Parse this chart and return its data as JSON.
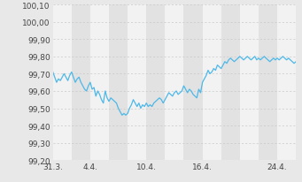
{
  "background_color": "#e8e8e8",
  "plot_bg_light": "#f2f2f2",
  "plot_bg_dark": "#e2e2e2",
  "line_color": "#4db8e8",
  "line_width": 0.9,
  "ylim": [
    99.2,
    100.1
  ],
  "ytick_labels": [
    "99,20",
    "99,30",
    "99,40",
    "99,50",
    "99,60",
    "99,70",
    "99,80",
    "99,90",
    "100,00",
    "100,10"
  ],
  "ytick_values": [
    99.2,
    99.3,
    99.4,
    99.5,
    99.6,
    99.7,
    99.8,
    99.9,
    100.0,
    100.1
  ],
  "xtick_labels": [
    "31.3.",
    "4.4.",
    "10.4.",
    "16.4.",
    "24.4."
  ],
  "xtick_positions": [
    0,
    4,
    10,
    16,
    24
  ],
  "grid_color": "#c8c8c8",
  "n_stripes": 14,
  "xlim": [
    0,
    26
  ],
  "x_values": [
    0,
    0.2,
    0.4,
    0.6,
    0.8,
    1.0,
    1.2,
    1.4,
    1.6,
    1.8,
    2.0,
    2.2,
    2.4,
    2.6,
    2.8,
    3.0,
    3.2,
    3.4,
    3.6,
    3.8,
    4.0,
    4.2,
    4.4,
    4.6,
    4.8,
    5.0,
    5.2,
    5.4,
    5.6,
    5.8,
    6.0,
    6.2,
    6.4,
    6.6,
    6.8,
    7.0,
    7.2,
    7.4,
    7.6,
    7.8,
    8.0,
    8.2,
    8.4,
    8.6,
    8.8,
    9.0,
    9.2,
    9.4,
    9.6,
    9.8,
    10.0,
    10.2,
    10.4,
    10.6,
    10.8,
    11.0,
    11.2,
    11.4,
    11.6,
    11.8,
    12.0,
    12.2,
    12.4,
    12.6,
    12.8,
    13.0,
    13.2,
    13.4,
    13.6,
    13.8,
    14.0,
    14.2,
    14.4,
    14.6,
    14.8,
    15.0,
    15.2,
    15.4,
    15.6,
    15.8,
    16.0,
    16.2,
    16.4,
    16.6,
    16.8,
    17.0,
    17.2,
    17.4,
    17.6,
    17.8,
    18.0,
    18.2,
    18.4,
    18.6,
    18.8,
    19.0,
    19.2,
    19.4,
    19.6,
    19.8,
    20.0,
    20.2,
    20.4,
    20.6,
    20.8,
    21.0,
    21.2,
    21.4,
    21.6,
    21.8,
    22.0,
    22.2,
    22.4,
    22.6,
    22.8,
    23.0,
    23.2,
    23.4,
    23.6,
    23.8,
    24.0,
    24.2,
    24.4,
    24.6,
    24.8,
    25.0,
    25.2,
    25.4,
    25.6,
    25.8,
    26.0
  ],
  "y_values": [
    99.71,
    99.68,
    99.65,
    99.67,
    99.66,
    99.68,
    99.7,
    99.68,
    99.66,
    99.69,
    99.71,
    99.68,
    99.65,
    99.67,
    99.68,
    99.65,
    99.63,
    99.61,
    99.6,
    99.63,
    99.65,
    99.61,
    99.62,
    99.57,
    99.6,
    99.58,
    99.55,
    99.53,
    99.6,
    99.56,
    99.54,
    99.56,
    99.55,
    99.54,
    99.53,
    99.5,
    99.48,
    99.46,
    99.47,
    99.46,
    99.47,
    99.5,
    99.52,
    99.55,
    99.53,
    99.51,
    99.53,
    99.5,
    99.52,
    99.51,
    99.53,
    99.51,
    99.52,
    99.51,
    99.53,
    99.54,
    99.55,
    99.56,
    99.55,
    99.53,
    99.55,
    99.57,
    99.59,
    99.58,
    99.57,
    99.59,
    99.6,
    99.58,
    99.59,
    99.6,
    99.63,
    99.61,
    99.59,
    99.61,
    99.6,
    99.58,
    99.57,
    99.56,
    99.61,
    99.59,
    99.65,
    99.67,
    99.69,
    99.72,
    99.7,
    99.71,
    99.73,
    99.72,
    99.75,
    99.74,
    99.73,
    99.75,
    99.77,
    99.76,
    99.78,
    99.79,
    99.78,
    99.77,
    99.78,
    99.79,
    99.8,
    99.79,
    99.78,
    99.79,
    99.8,
    99.79,
    99.78,
    99.79,
    99.8,
    99.78,
    99.79,
    99.78,
    99.79,
    99.8,
    99.79,
    99.78,
    99.77,
    99.78,
    99.79,
    99.78,
    99.79,
    99.78,
    99.79,
    99.8,
    99.79,
    99.78,
    99.79,
    99.78,
    99.77,
    99.76,
    99.77
  ]
}
